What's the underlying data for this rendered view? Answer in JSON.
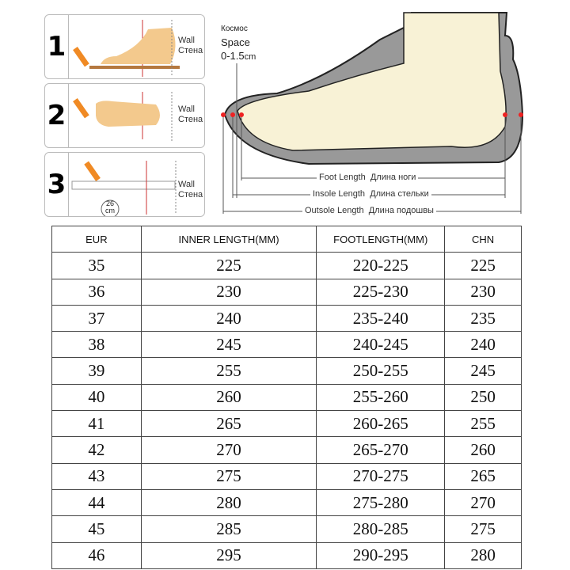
{
  "steps": [
    {
      "number": "1",
      "wall_en": "Wall",
      "wall_ru": "Стена"
    },
    {
      "number": "2",
      "wall_en": "Wall",
      "wall_ru": "Стена"
    },
    {
      "number": "3",
      "wall_en": "Wall",
      "wall_ru": "Стена",
      "ruler_value": "26",
      "ruler_unit": "cm"
    }
  ],
  "space": {
    "ru": "Космос",
    "en": "Space",
    "range": "0-1.5",
    "unit": "cm"
  },
  "measures": [
    {
      "en": "Foot Length",
      "ru": "Длина ноги"
    },
    {
      "en": "Insole Length",
      "ru": "Длина стельки"
    },
    {
      "en": "Outsole Length",
      "ru": "Длина подошвы"
    }
  ],
  "table": {
    "headers": [
      "EUR",
      "INNER LENGTH(MM)",
      "FOOTLENGTH(MM)",
      "CHN"
    ],
    "rows": [
      [
        "35",
        "225",
        "220-225",
        "225"
      ],
      [
        "36",
        "230",
        "225-230",
        "230"
      ],
      [
        "37",
        "240",
        "235-240",
        "235"
      ],
      [
        "38",
        "245",
        "240-245",
        "240"
      ],
      [
        "39",
        "255",
        "250-255",
        "245"
      ],
      [
        "40",
        "260",
        "255-260",
        "250"
      ],
      [
        "41",
        "265",
        "260-265",
        "255"
      ],
      [
        "42",
        "270",
        "265-270",
        "260"
      ],
      [
        "43",
        "275",
        "270-275",
        "265"
      ],
      [
        "44",
        "280",
        "275-280",
        "270"
      ],
      [
        "45",
        "285",
        "280-285",
        "275"
      ],
      [
        "46",
        "295",
        "290-295",
        "280"
      ]
    ]
  }
}
